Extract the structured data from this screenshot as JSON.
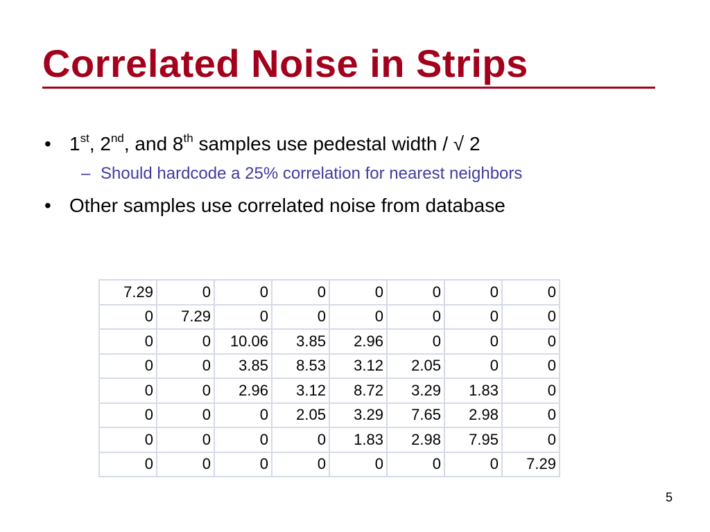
{
  "slide": {
    "title": "Correlated Noise in Strips",
    "page_number": "5",
    "accent_color": "#a3001c",
    "sub_bullet_color": "#3d3d9e"
  },
  "bullets": [
    {
      "marker": "•",
      "parts": [
        {
          "text": "1"
        },
        {
          "sup": "st"
        },
        {
          "text": ", 2"
        },
        {
          "sup": "nd"
        },
        {
          "text": ", and 8"
        },
        {
          "sup": "th"
        },
        {
          "text": " samples use pedestal width / √ 2"
        }
      ]
    },
    {
      "marker": "•",
      "parts": [
        {
          "text": "Other samples use correlated noise from database"
        }
      ]
    }
  ],
  "sub_bullets": [
    {
      "marker": "–",
      "text": "Should hardcode a 25% correlation for nearest neighbors"
    }
  ],
  "matrix": {
    "rows": [
      [
        "7.29",
        "0",
        "0",
        "0",
        "0",
        "0",
        "0",
        "0"
      ],
      [
        "0",
        "7.29",
        "0",
        "0",
        "0",
        "0",
        "0",
        "0"
      ],
      [
        "0",
        "0",
        "10.06",
        "3.85",
        "2.96",
        "0",
        "0",
        "0"
      ],
      [
        "0",
        "0",
        "3.85",
        "8.53",
        "3.12",
        "2.05",
        "0",
        "0"
      ],
      [
        "0",
        "0",
        "2.96",
        "3.12",
        "8.72",
        "3.29",
        "1.83",
        "0"
      ],
      [
        "0",
        "0",
        "0",
        "2.05",
        "3.29",
        "7.65",
        "2.98",
        "0"
      ],
      [
        "0",
        "0",
        "0",
        "0",
        "1.83",
        "2.98",
        "7.95",
        "0"
      ],
      [
        "0",
        "0",
        "0",
        "0",
        "0",
        "0",
        "0",
        "7.29"
      ]
    ]
  }
}
